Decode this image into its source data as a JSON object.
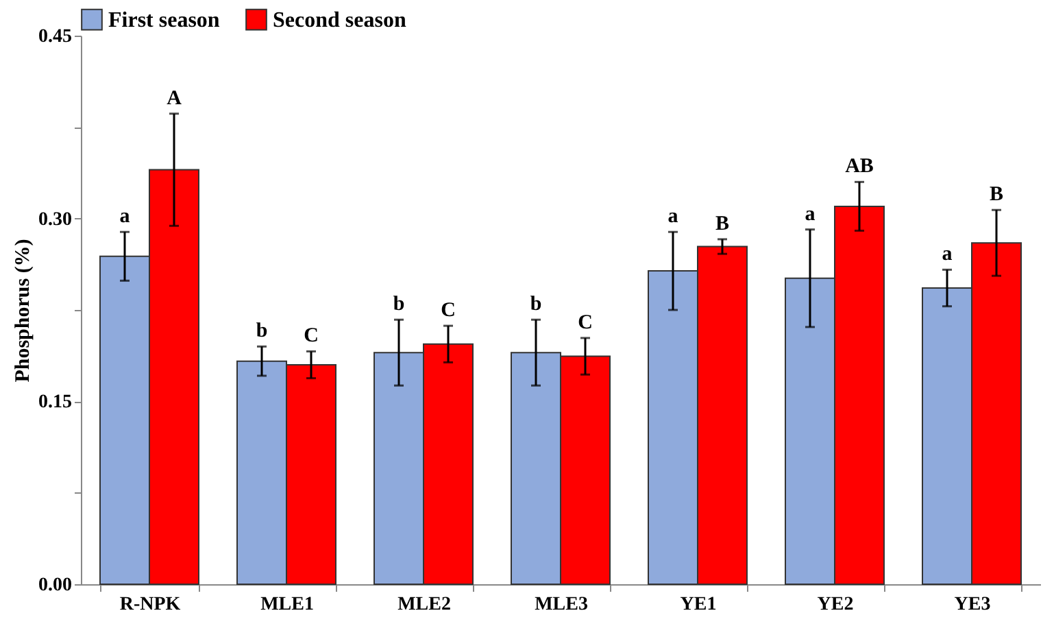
{
  "chart_data": {
    "type": "bar",
    "ylabel": "Phosphorus (%)",
    "categories": [
      "R-NPK",
      "MLE1",
      "MLE2",
      "MLE3",
      "YE1",
      "YE2",
      "YE3"
    ],
    "series": [
      {
        "name": "First season",
        "color": "#8faadc",
        "values": [
          0.269,
          0.183,
          0.19,
          0.19,
          0.257,
          0.251,
          0.243
        ],
        "errors": [
          0.02,
          0.012,
          0.027,
          0.027,
          0.032,
          0.04,
          0.015
        ]
      },
      {
        "name": "Second season",
        "color": "#ff0000",
        "values": [
          0.34,
          0.18,
          0.197,
          0.187,
          0.277,
          0.31,
          0.28
        ],
        "errors": [
          0.046,
          0.011,
          0.015,
          0.015,
          0.006,
          0.02,
          0.027
        ]
      }
    ],
    "ylim": [
      0,
      0.45
    ],
    "yticks": [
      {
        "value": 0,
        "label": "0.00"
      },
      {
        "value": 0.075,
        "label": null
      },
      {
        "value": 0.15,
        "label": "0.15"
      },
      {
        "value": 0.225,
        "label": null
      },
      {
        "value": 0.3,
        "label": "0.30"
      },
      {
        "value": 0.375,
        "label": null
      },
      {
        "value": 0.45,
        "label": "0.45"
      }
    ],
    "annotations": [
      "a",
      "A",
      "b",
      "C",
      "b",
      "C",
      "b",
      "C",
      "a",
      "B",
      "a",
      "AB",
      "a",
      "B"
    ],
    "grid": false,
    "legend": "top"
  }
}
